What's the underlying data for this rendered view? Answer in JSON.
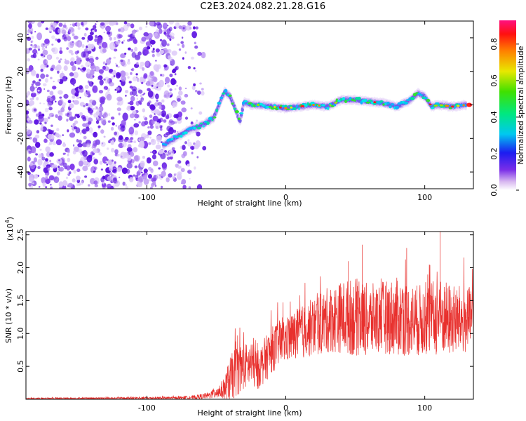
{
  "title": "C2E3.2024.082.21.28.G16",
  "chart_data": [
    {
      "type": "heatmap",
      "title": "C2E3.2024.082.21.28.G16",
      "xlabel": "Height of straight line (km)",
      "ylabel": "Frequency (Hz)",
      "xlim": [
        -187,
        135
      ],
      "ylim": [
        -50,
        50
      ],
      "x_ticks": [
        "-100",
        "0",
        "100"
      ],
      "y_ticks": [
        "-40",
        "-20",
        "0",
        "20",
        "40"
      ],
      "colorbar": {
        "label": "Normalized spectral amplitude",
        "range": [
          0.0,
          0.93
        ],
        "ticks": [
          "0.0",
          "0.2",
          "0.4",
          "0.6",
          "0.8"
        ],
        "colormap": "rainbow"
      },
      "ridge_trace": {
        "x": [
          -88,
          -80,
          -70,
          -60,
          -52,
          -47,
          -44,
          -40,
          -36,
          -33,
          -30,
          -25,
          -20,
          -10,
          0,
          10,
          20,
          30,
          40,
          50,
          60,
          70,
          80,
          90,
          95,
          100,
          105,
          110,
          120,
          130
        ],
        "y": [
          -24,
          -20,
          -15,
          -12,
          -8,
          2,
          8,
          5,
          -3,
          -10,
          2,
          0,
          0,
          -1,
          -2,
          -1,
          0,
          -1,
          3,
          3,
          2,
          1,
          -1,
          3,
          7,
          5,
          -1,
          0,
          -1,
          0
        ]
      }
    },
    {
      "type": "line",
      "xlabel": "Height of straight line (km)",
      "ylabel": "SNR (10 * v/v)",
      "y_multiplier": "(x10",
      "y_multiplier_exp": "4",
      "y_multiplier_close": ")",
      "xlim": [
        -187,
        135
      ],
      "ylim": [
        0,
        2.55
      ],
      "x_ticks": [
        "-100",
        "0",
        "100"
      ],
      "y_ticks": [
        "0.5",
        "1.0",
        "1.5",
        "2.0",
        "2.5"
      ],
      "series": [
        {
          "color": "#e8302d",
          "envelope_x": [
            -187,
            -80,
            -65,
            -55,
            -45,
            -40,
            -35,
            -30,
            -25,
            -20,
            -15,
            -10,
            -5,
            0,
            10,
            20,
            30,
            40,
            50,
            60,
            70,
            80,
            90,
            100,
            110,
            120,
            135
          ],
          "mean": [
            0.01,
            0.02,
            0.03,
            0.06,
            0.15,
            0.3,
            0.45,
            0.5,
            0.52,
            0.45,
            0.6,
            0.75,
            0.85,
            0.9,
            1.0,
            1.1,
            1.2,
            1.25,
            1.25,
            1.2,
            1.25,
            1.25,
            1.2,
            1.2,
            1.25,
            1.2,
            1.2
          ],
          "spread": [
            0.01,
            0.02,
            0.03,
            0.05,
            0.15,
            0.35,
            0.4,
            0.35,
            0.35,
            0.3,
            0.35,
            0.35,
            0.35,
            0.35,
            0.4,
            0.45,
            0.5,
            0.55,
            0.6,
            0.55,
            0.55,
            0.6,
            0.55,
            0.55,
            0.6,
            0.55,
            0.5
          ],
          "peaks": [
            {
              "x": -36,
              "y": 0.88
            },
            {
              "x": 45,
              "y": 2.1
            },
            {
              "x": 55,
              "y": 2.35
            },
            {
              "x": 87,
              "y": 2.3
            },
            {
              "x": 111,
              "y": 2.55
            }
          ]
        }
      ]
    }
  ]
}
